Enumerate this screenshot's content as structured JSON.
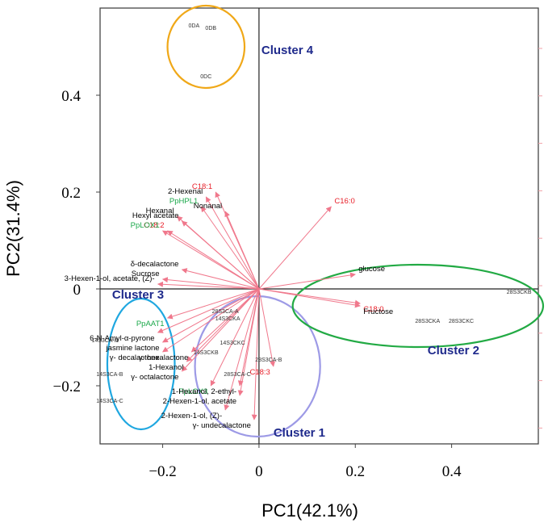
{
  "chart_data": {
    "type": "scatter",
    "subtype": "PCA biplot",
    "xlabel": "PC1(42.1%)",
    "ylabel": "PC2(31.4%)",
    "xlim": [
      -0.33,
      0.58
    ],
    "ylim": [
      -0.32,
      0.58
    ],
    "xticks": [
      {
        "v": -0.2,
        "label": "−0.2"
      },
      {
        "v": 0,
        "label": "0"
      },
      {
        "v": 0.2,
        "label": "0.2"
      },
      {
        "v": 0.4,
        "label": "0.4"
      }
    ],
    "yticks": [
      {
        "v": -0.2,
        "label": "−0.2"
      },
      {
        "v": 0,
        "label": "0"
      },
      {
        "v": 0.2,
        "label": "0.2"
      },
      {
        "v": 0.4,
        "label": "0.4"
      }
    ],
    "colors": {
      "arrow": "#f0788c",
      "red_label": "#e8202a",
      "green_label": "#1aa84a",
      "black_label": "#000000",
      "cluster_label": "#1f2a8c",
      "point_label": "#333333"
    },
    "variables": [
      {
        "label": "C18:1",
        "group": "fatty_acid",
        "x": -0.09,
        "y": 0.2
      },
      {
        "label": "2-Hexenal",
        "group": "volatile",
        "x": -0.11,
        "y": 0.19
      },
      {
        "label": "PpHPL1",
        "group": "gene",
        "x": -0.12,
        "y": 0.17
      },
      {
        "label": "Hexanal",
        "group": "volatile",
        "x": -0.17,
        "y": 0.15
      },
      {
        "label": "Hexyl acetate",
        "group": "volatile",
        "x": -0.16,
        "y": 0.14
      },
      {
        "label": "Nonanal",
        "group": "volatile",
        "x": -0.07,
        "y": 0.16
      },
      {
        "label": "C18:2",
        "group": "fatty_acid",
        "x": -0.19,
        "y": 0.12
      },
      {
        "label": "PpLOX1",
        "group": "gene",
        "x": -0.2,
        "y": 0.12
      },
      {
        "label": "δ-decalactone",
        "group": "volatile",
        "x": -0.16,
        "y": 0.04
      },
      {
        "label": "Sucrose",
        "group": "sugar",
        "x": -0.2,
        "y": 0.02
      },
      {
        "label": "3-Hexen-1-ol, acetate, (Z)-",
        "group": "volatile",
        "x": -0.21,
        "y": 0.01
      },
      {
        "label": "C16:0",
        "group": "fatty_acid",
        "x": 0.15,
        "y": 0.17
      },
      {
        "label": "glucose",
        "group": "sugar",
        "x": 0.2,
        "y": 0.03
      },
      {
        "label": "C18:0",
        "group": "fatty_acid",
        "x": 0.21,
        "y": -0.03
      },
      {
        "label": "Fructose",
        "group": "sugar",
        "x": 0.21,
        "y": -0.035
      },
      {
        "label": "PpAAT1",
        "group": "gene",
        "x": -0.19,
        "y": -0.06
      },
      {
        "label": "6-N-Amyl-α-pyrone",
        "group": "volatile",
        "x": -0.21,
        "y": -0.09
      },
      {
        "label": "jasmine lactone",
        "group": "volatile",
        "x": -0.2,
        "y": -0.11
      },
      {
        "label": "γ- decalactone",
        "group": "volatile",
        "x": -0.2,
        "y": -0.13
      },
      {
        "label": "γ- hexalactone",
        "group": "volatile",
        "x": -0.14,
        "y": -0.13
      },
      {
        "label": "1-Hexanol",
        "group": "volatile",
        "x": -0.15,
        "y": -0.15
      },
      {
        "label": "γ- octalactone",
        "group": "volatile",
        "x": -0.16,
        "y": -0.17
      },
      {
        "label": "PpLOX3",
        "group": "gene",
        "x": -0.1,
        "y": -0.2
      },
      {
        "label": "C18:3",
        "group": "fatty_acid",
        "x": 0.03,
        "y": -0.16
      },
      {
        "label": "1-Hexanol, 2-ethyl-",
        "group": "volatile",
        "x": -0.04,
        "y": -0.2
      },
      {
        "label": "2-Hexen-1-ol, acetate",
        "group": "volatile",
        "x": -0.04,
        "y": -0.22
      },
      {
        "label": "2-Hexen-1-ol, (Z)-",
        "group": "volatile",
        "x": -0.07,
        "y": -0.25
      },
      {
        "label": "γ- undecalactone",
        "group": "volatile",
        "x": -0.01,
        "y": -0.27
      }
    ],
    "samples": [
      {
        "label": "0DA",
        "x": -0.135,
        "y": 0.54
      },
      {
        "label": "0DB",
        "x": -0.1,
        "y": 0.535
      },
      {
        "label": "0DC",
        "x": -0.11,
        "y": 0.435
      },
      {
        "label": "28S3CKB",
        "x": 0.54,
        "y": -0.01
      },
      {
        "label": "28S3CKA",
        "x": 0.35,
        "y": -0.07
      },
      {
        "label": "28S3CKC",
        "x": 0.42,
        "y": -0.07
      },
      {
        "label": "28S3CA-A",
        "x": -0.07,
        "y": -0.05
      },
      {
        "label": "14S3CKA",
        "x": -0.065,
        "y": -0.065
      },
      {
        "label": "14S3CKC",
        "x": -0.055,
        "y": -0.115
      },
      {
        "label": "14S3CKB",
        "x": -0.11,
        "y": -0.135
      },
      {
        "label": "28S3CA-B",
        "x": 0.02,
        "y": -0.15
      },
      {
        "label": "28S3CA-C",
        "x": -0.045,
        "y": -0.18
      },
      {
        "label": "14S3CA-A",
        "x": -0.32,
        "y": -0.11
      },
      {
        "label": "14S3CA-B",
        "x": -0.31,
        "y": -0.18
      },
      {
        "label": "14S3CA-C",
        "x": -0.31,
        "y": -0.235
      }
    ],
    "clusters": [
      {
        "label": "Cluster 1",
        "color": "#9d9ae6",
        "cx": -0.003,
        "cy": -0.16,
        "rx": 0.13,
        "ry": 0.145,
        "label_x": 0.03,
        "label_y": -0.305
      },
      {
        "label": "Cluster 2",
        "color": "#22aa44",
        "cx": 0.33,
        "cy": -0.035,
        "rx": 0.26,
        "ry": 0.085,
        "label_x": 0.35,
        "label_y": -0.135
      },
      {
        "label": "Cluster 3",
        "color": "#1fa7e0",
        "cx": -0.245,
        "cy": -0.155,
        "rx": 0.07,
        "ry": 0.135,
        "label_x": -0.305,
        "label_y": -0.02
      },
      {
        "label": "Cluster 4",
        "color": "#f0a818",
        "cx": -0.11,
        "cy": 0.5,
        "rx": 0.08,
        "ry": 0.085,
        "label_x": 0.005,
        "label_y": 0.485
      }
    ]
  }
}
